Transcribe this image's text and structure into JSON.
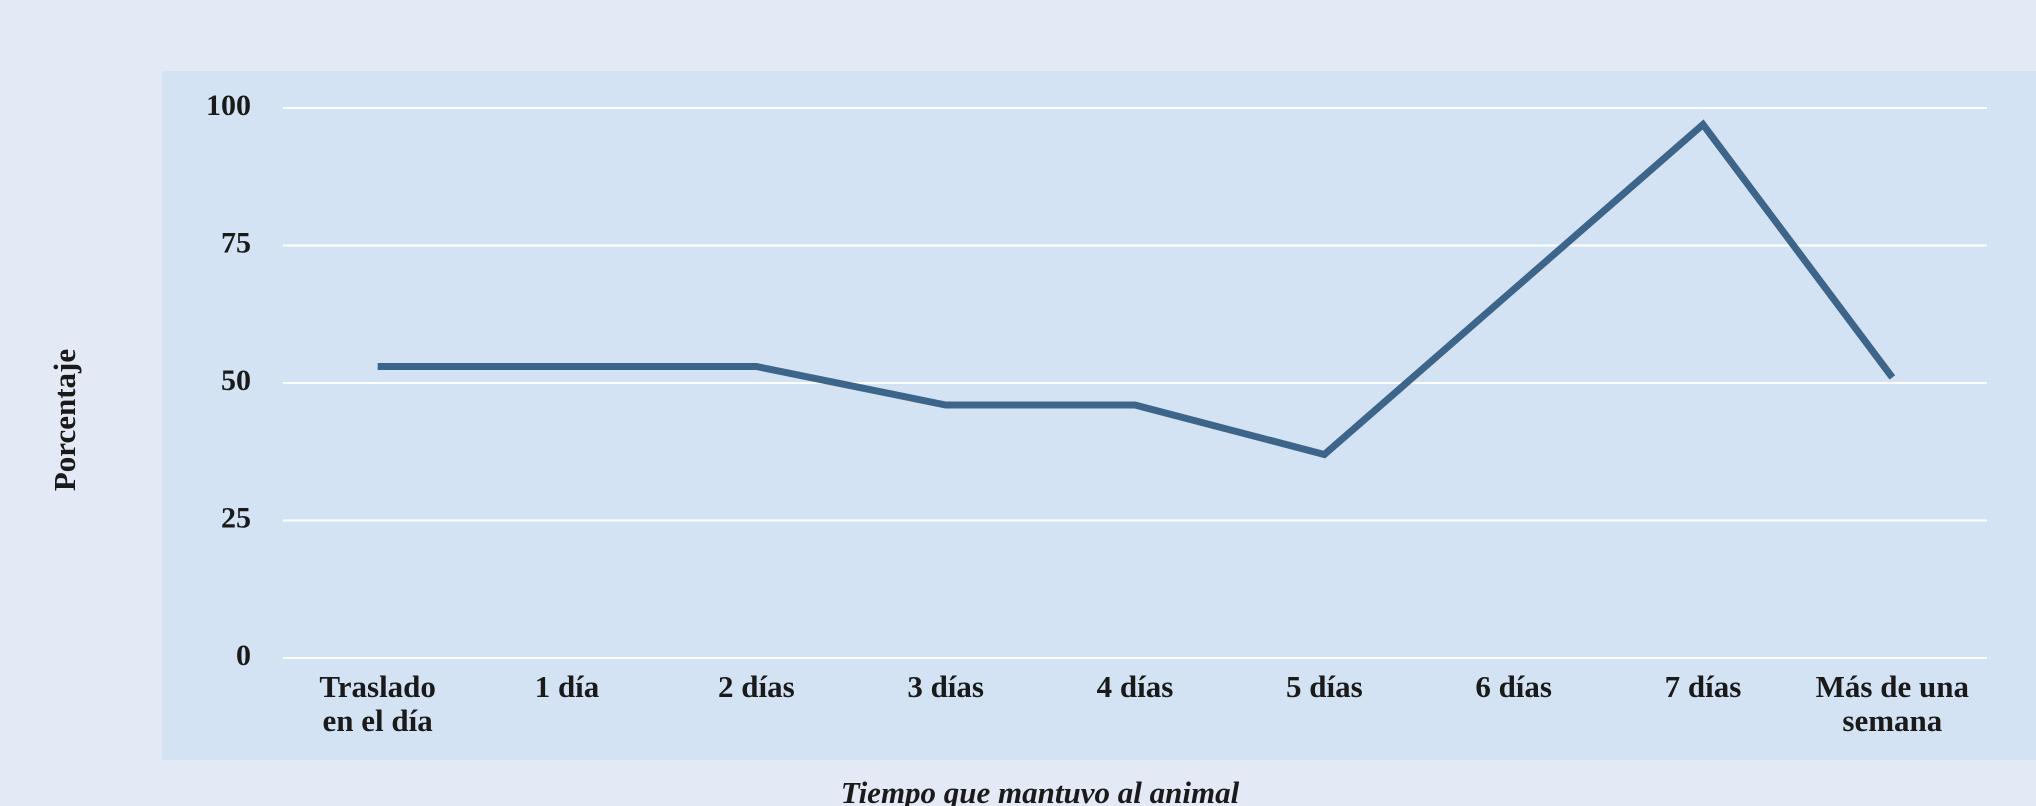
{
  "chart_data": {
    "type": "line",
    "x_label": "Tiempo que mantuvo al animal",
    "y_label": "Porcentaje",
    "categories": [
      "Traslado\nen el día",
      "1 día",
      "2 días",
      "3 días",
      "4 días",
      "5 días",
      "6 días",
      "7 días",
      "Más de una\nsemana"
    ],
    "series": [
      {
        "name": "Porcentaje",
        "color": "#3d6589",
        "values": [
          53,
          53,
          53,
          46,
          46,
          37,
          67,
          97,
          51
        ]
      }
    ],
    "ylim": [
      0,
      100
    ],
    "yticks": [
      0,
      25,
      50,
      75,
      100
    ],
    "grid": true
  }
}
